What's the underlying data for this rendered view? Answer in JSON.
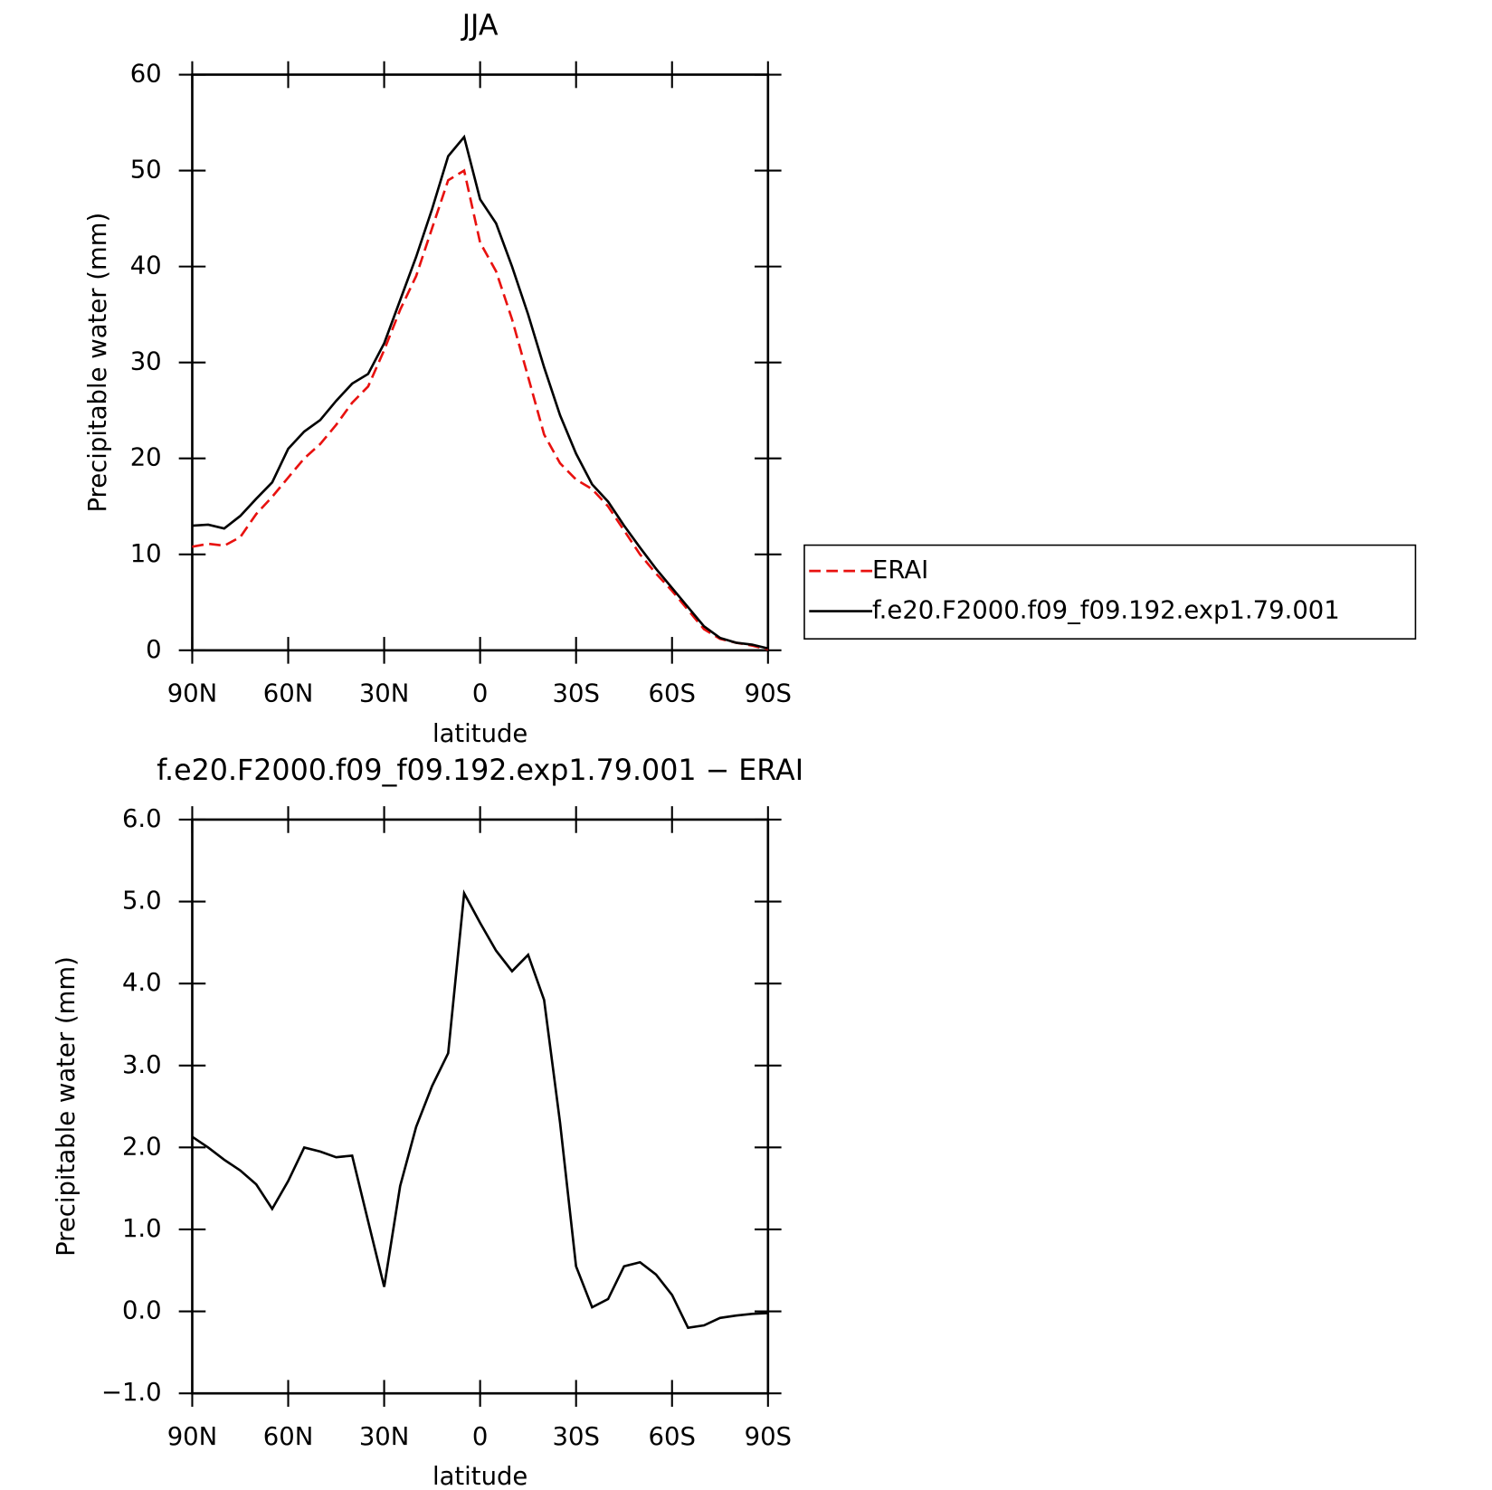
{
  "chart_data": [
    {
      "type": "line",
      "title": "JJA",
      "xlabel": "latitude",
      "ylabel": "Precipitable water (mm)",
      "x": [
        90,
        85,
        80,
        75,
        70,
        65,
        60,
        55,
        50,
        45,
        40,
        35,
        30,
        25,
        20,
        15,
        10,
        5,
        0,
        -5,
        -10,
        -15,
        -20,
        -25,
        -30,
        -35,
        -40,
        -45,
        -50,
        -55,
        -60,
        -65,
        -70,
        -75,
        -80,
        -85,
        -90
      ],
      "series": [
        {
          "name": "ERAI",
          "color": "#e8110f",
          "dash": true,
          "values": [
            10.8,
            11.1,
            10.9,
            11.8,
            14.2,
            16.0,
            18.0,
            20.0,
            21.5,
            23.5,
            25.8,
            27.5,
            31.3,
            35.5,
            39.0,
            44.0,
            49.0,
            50.0,
            42.5,
            39.5,
            34.5,
            28.5,
            22.5,
            19.5,
            17.8,
            16.8,
            15.0,
            12.5,
            10.0,
            8.0,
            6.2,
            4.2,
            2.2,
            1.2,
            0.8,
            0.5,
            0.1
          ]
        },
        {
          "name": "f.e20.F2000.f09_f09.192.exp1.79.001",
          "color": "#000000",
          "dash": false,
          "values": [
            13.0,
            13.1,
            12.7,
            14.0,
            15.8,
            17.5,
            21.0,
            22.8,
            24.0,
            26.0,
            27.8,
            28.8,
            32.0,
            36.5,
            41.0,
            46.0,
            51.5,
            53.5,
            47.0,
            44.5,
            40.0,
            35.0,
            29.5,
            24.5,
            20.5,
            17.3,
            15.5,
            13.0,
            10.7,
            8.5,
            6.5,
            4.5,
            2.5,
            1.3,
            0.8,
            0.6,
            0.2
          ]
        }
      ],
      "xlim": [
        90,
        -90
      ],
      "xticks": [
        {
          "value": 90,
          "label": "90N"
        },
        {
          "value": 60,
          "label": "60N"
        },
        {
          "value": 30,
          "label": "30N"
        },
        0,
        {
          "value": -30,
          "label": "30S"
        },
        {
          "value": -60,
          "label": "60S"
        },
        {
          "value": -90,
          "label": "90S"
        }
      ],
      "ylim": [
        0,
        60
      ],
      "yticks": [
        0,
        10,
        20,
        30,
        40,
        50,
        60
      ],
      "legend": "right"
    },
    {
      "type": "line",
      "title": "f.e20.F2000.f09_f09.192.exp1.79.001 − ERAI",
      "xlabel": "latitude",
      "ylabel": "Precipitable water (mm)",
      "x": [
        90,
        85,
        80,
        75,
        70,
        65,
        60,
        55,
        50,
        45,
        40,
        35,
        30,
        25,
        20,
        15,
        10,
        5,
        0,
        -5,
        -10,
        -15,
        -20,
        -25,
        -30,
        -35,
        -40,
        -45,
        -50,
        -55,
        -60,
        -65,
        -70,
        -75,
        -80,
        -85,
        -90
      ],
      "color": "#000000",
      "values": [
        2.13,
        2.0,
        1.85,
        1.72,
        1.55,
        1.25,
        1.59,
        2.0,
        1.95,
        1.88,
        1.9,
        1.1,
        0.3,
        1.53,
        2.25,
        2.75,
        3.15,
        5.1,
        4.74,
        4.4,
        4.15,
        4.35,
        3.8,
        2.3,
        0.55,
        0.05,
        0.15,
        0.55,
        0.6,
        0.45,
        0.2,
        -0.2,
        -0.17,
        -0.08,
        -0.05,
        -0.03,
        -0.02
      ],
      "xlim": [
        90,
        -90
      ],
      "xticks": [
        {
          "value": 90,
          "label": "90N"
        },
        {
          "value": 60,
          "label": "60N"
        },
        {
          "value": 30,
          "label": "30N"
        },
        0,
        {
          "value": -30,
          "label": "30S"
        },
        {
          "value": -60,
          "label": "60S"
        },
        {
          "value": -90,
          "label": "90S"
        }
      ],
      "ylim": [
        -1,
        6
      ],
      "yticks": [
        {
          "value": -1,
          "label": "−1.0"
        },
        {
          "value": 0,
          "label": "0.0"
        },
        {
          "value": 1,
          "label": "1.0"
        },
        {
          "value": 2,
          "label": "2.0"
        },
        {
          "value": 3,
          "label": "3.0"
        },
        {
          "value": 4,
          "label": "4.0"
        },
        {
          "value": 5,
          "label": "5.0"
        },
        {
          "value": 6,
          "label": "6.0"
        }
      ]
    }
  ]
}
